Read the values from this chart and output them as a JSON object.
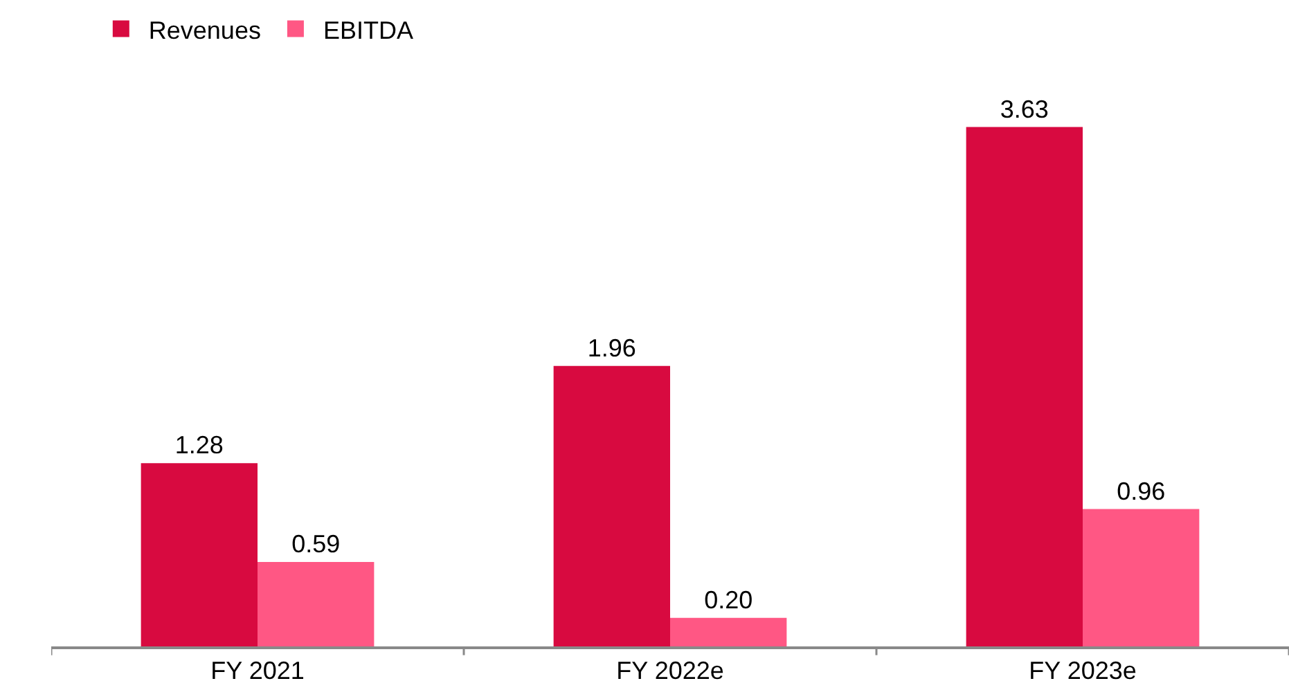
{
  "chart_data": {
    "type": "bar",
    "categories": [
      "FY 2021",
      "FY 2022e",
      "FY 2023e"
    ],
    "series": [
      {
        "name": "Revenues",
        "color": "#d80a40",
        "values": [
          1.28,
          1.96,
          3.63
        ],
        "value_labels": [
          "1.28",
          "1.96",
          "3.63"
        ]
      },
      {
        "name": "EBITDA",
        "color": "#ff5784",
        "values": [
          0.59,
          0.2,
          0.96
        ],
        "value_labels": [
          "0.59",
          "0.20",
          "0.96"
        ]
      }
    ],
    "legend": "top left",
    "tick_labels": "x"
  }
}
